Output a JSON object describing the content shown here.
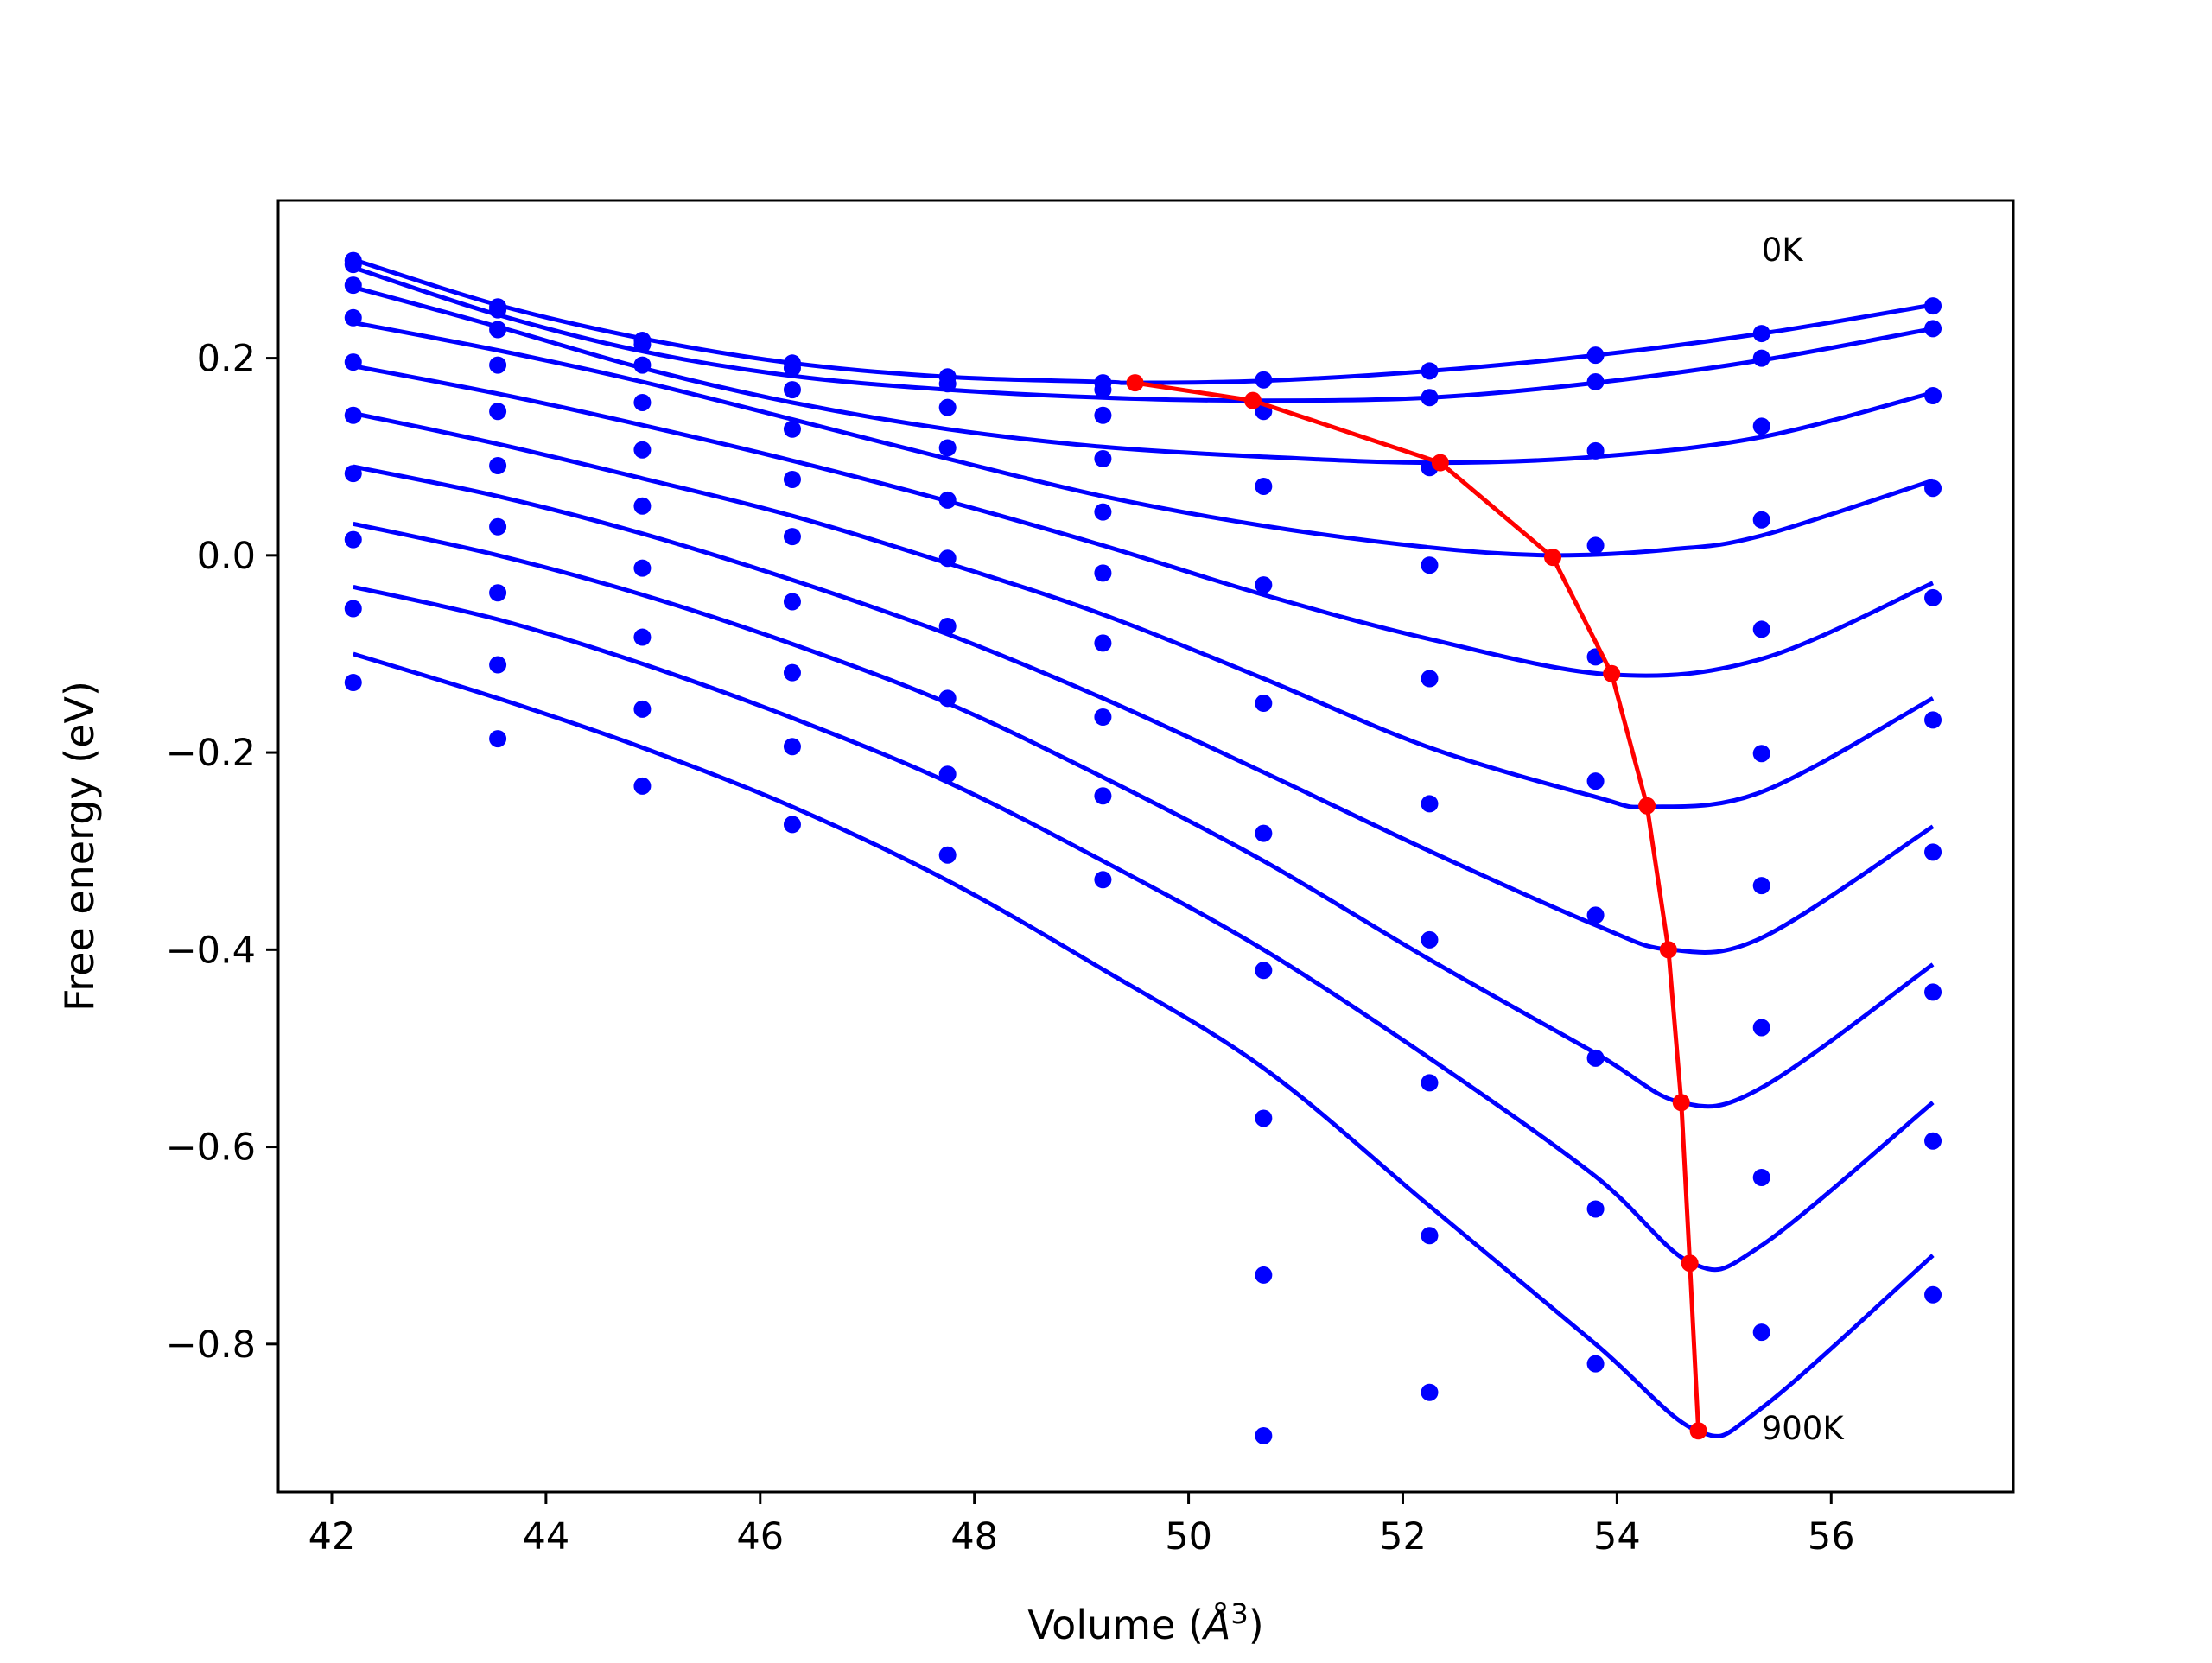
{
  "chart_data": {
    "type": "line",
    "title": "",
    "xlabel": "Volume (",
    "xlabel_symbol": "Å",
    "xlabel_exp": "3",
    "xlabel_close": ")",
    "ylabel": "Free energy (eV)",
    "xlim": [
      41.5,
      57.7
    ],
    "ylim": [
      -0.95,
      0.36
    ],
    "grid": false,
    "legend": "none",
    "x_ticks": [
      42,
      44,
      46,
      48,
      50,
      52,
      54,
      56
    ],
    "x_tick_labels": [
      "42",
      "44",
      "46",
      "48",
      "50",
      "52",
      "54",
      "56"
    ],
    "y_ticks": [
      0.2,
      0.0,
      -0.2,
      -0.4,
      -0.6,
      -0.8
    ],
    "y_tick_labels": [
      "0.2",
      "0.0",
      "−0.2",
      "−0.4",
      "−0.6",
      "−0.8"
    ],
    "colors": {
      "fit": "#0000ff",
      "points": "#0000ff",
      "minimum": "#ff0000"
    },
    "annotations": [
      {
        "text": "0K",
        "x": 55.35,
        "y": 0.31
      },
      {
        "text": "900K",
        "x": 55.35,
        "y": -0.885
      }
    ],
    "volumes": [
      42.2,
      43.55,
      44.9,
      46.3,
      47.75,
      49.2,
      50.7,
      52.25,
      53.8,
      55.35,
      56.95
    ],
    "series": [
      {
        "label": "0K",
        "points": [
          0.295,
          0.252,
          0.218,
          0.195,
          0.181,
          0.175,
          0.178,
          0.187,
          0.203,
          0.225,
          0.253
        ],
        "fit": {
          "x": [
            42.2,
            43.55,
            44.9,
            46.3,
            47.75,
            49.2,
            49.5,
            50.7,
            52.25,
            53.8,
            55.35,
            56.95
          ],
          "y": [
            0.3,
            0.254,
            0.22,
            0.195,
            0.181,
            0.176,
            0.175,
            0.177,
            0.187,
            0.203,
            0.225,
            0.254
          ]
        }
      },
      {
        "points": [
          0.299,
          0.249,
          0.214,
          0.19,
          0.174,
          0.168,
          0.146,
          0.16,
          0.176,
          0.2,
          0.23
        ],
        "fit": {
          "x": [
            42.2,
            43.55,
            44.9,
            46.3,
            47.75,
            49.2,
            50.6,
            52.25,
            53.8,
            55.35,
            56.95
          ],
          "y": [
            0.292,
            0.244,
            0.207,
            0.182,
            0.168,
            0.16,
            0.157,
            0.16,
            0.175,
            0.198,
            0.23
          ]
        }
      },
      {
        "points": [
          0.274,
          0.229,
          0.193,
          0.168,
          0.15,
          0.142,
          0.07,
          0.089,
          0.106,
          0.131,
          0.162
        ],
        "fit": {
          "x": [
            42.2,
            43.55,
            44.9,
            46.3,
            47.75,
            49.2,
            50.7,
            52.3,
            53.8,
            55.35,
            56.95
          ],
          "y": [
            0.272,
            0.232,
            0.19,
            0.155,
            0.128,
            0.11,
            0.1,
            0.094,
            0.1,
            0.12,
            0.165
          ]
        }
      },
      {
        "points": [
          0.241,
          0.193,
          0.155,
          0.128,
          0.109,
          0.098,
          -0.03,
          -0.01,
          0.01,
          0.036,
          0.068
        ],
        "fit": {
          "x": [
            42.2,
            43.55,
            44.9,
            46.3,
            47.75,
            49.2,
            50.7,
            52.25,
            53.4,
            54.5,
            55.35,
            56.95
          ],
          "y": [
            0.236,
            0.208,
            0.176,
            0.138,
            0.098,
            0.06,
            0.03,
            0.008,
            0.0,
            0.006,
            0.02,
            0.076
          ]
        }
      },
      {
        "points": [
          0.196,
          0.146,
          0.107,
          0.077,
          0.056,
          0.044,
          -0.15,
          -0.125,
          -0.103,
          -0.075,
          -0.043
        ],
        "fit": {
          "x": [
            42.2,
            43.55,
            44.9,
            46.3,
            47.75,
            49.2,
            50.7,
            52.25,
            53.95,
            55.35,
            56.95
          ],
          "y": [
            0.192,
            0.164,
            0.132,
            0.096,
            0.055,
            0.01,
            -0.04,
            -0.085,
            -0.121,
            -0.105,
            -0.028
          ]
        }
      },
      {
        "points": [
          0.142,
          0.091,
          0.05,
          0.019,
          -0.003,
          -0.018,
          -0.282,
          -0.252,
          -0.229,
          -0.201,
          -0.167
        ],
        "fit": {
          "x": [
            42.2,
            43.55,
            44.9,
            46.3,
            47.75,
            49.2,
            50.7,
            52.25,
            53.8,
            54.3,
            55.35,
            56.95
          ],
          "y": [
            0.144,
            0.113,
            0.078,
            0.04,
            -0.008,
            -0.06,
            -0.125,
            -0.195,
            -0.245,
            -0.255,
            -0.24,
            -0.145
          ]
        }
      },
      {
        "points": [
          0.083,
          0.029,
          -0.013,
          -0.047,
          -0.072,
          -0.089,
          -0.421,
          -0.39,
          -0.365,
          -0.335,
          -0.301
        ],
        "fit": {
          "x": [
            42.2,
            43.55,
            44.9,
            46.3,
            47.75,
            49.2,
            50.7,
            52.25,
            53.8,
            54.5,
            55.35,
            56.95
          ],
          "y": [
            0.09,
            0.06,
            0.022,
            -0.025,
            -0.08,
            -0.145,
            -0.22,
            -0.3,
            -0.375,
            -0.4,
            -0.388,
            -0.275
          ]
        }
      },
      {
        "points": [
          0.016,
          -0.038,
          -0.083,
          -0.119,
          -0.145,
          -0.164,
          -0.571,
          -0.535,
          -0.51,
          -0.479,
          -0.443
        ],
        "fit": {
          "x": [
            42.2,
            43.55,
            44.9,
            46.3,
            47.75,
            49.2,
            50.7,
            52.25,
            53.8,
            54.6,
            55.35,
            56.95
          ],
          "y": [
            0.032,
            0.0,
            -0.04,
            -0.09,
            -0.15,
            -0.225,
            -0.31,
            -0.41,
            -0.505,
            -0.555,
            -0.54,
            -0.415
          ]
        }
      },
      {
        "points": [
          -0.054,
          -0.111,
          -0.156,
          -0.194,
          -0.222,
          -0.244,
          -0.73,
          -0.69,
          -0.663,
          -0.631,
          -0.594
        ],
        "fit": {
          "x": [
            42.2,
            43.55,
            44.9,
            46.3,
            47.75,
            49.2,
            50.7,
            52.25,
            53.8,
            54.7,
            55.35,
            56.95
          ],
          "y": [
            -0.032,
            -0.065,
            -0.11,
            -0.165,
            -0.23,
            -0.31,
            -0.4,
            -0.51,
            -0.63,
            -0.718,
            -0.7,
            -0.555
          ]
        }
      },
      {
        "label": "900K",
        "points": [
          -0.129,
          -0.186,
          -0.234,
          -0.273,
          -0.304,
          -0.329,
          -0.893,
          -0.849,
          -0.82,
          -0.788,
          -0.75
        ],
        "fit": {
          "x": [
            42.2,
            43.55,
            44.9,
            46.3,
            47.75,
            49.2,
            50.7,
            52.25,
            53.8,
            54.75,
            55.35,
            56.95
          ],
          "y": [
            -0.1,
            -0.145,
            -0.195,
            -0.255,
            -0.33,
            -0.42,
            -0.52,
            -0.66,
            -0.8,
            -0.888,
            -0.865,
            -0.71
          ]
        }
      }
    ],
    "minimum_path": {
      "x": [
        49.5,
        50.6,
        52.35,
        53.4,
        53.95,
        54.28,
        54.48,
        54.6,
        54.68,
        54.76
      ],
      "y": [
        0.175,
        0.157,
        0.094,
        -0.002,
        -0.12,
        -0.254,
        -0.4,
        -0.555,
        -0.718,
        -0.888
      ]
    }
  }
}
